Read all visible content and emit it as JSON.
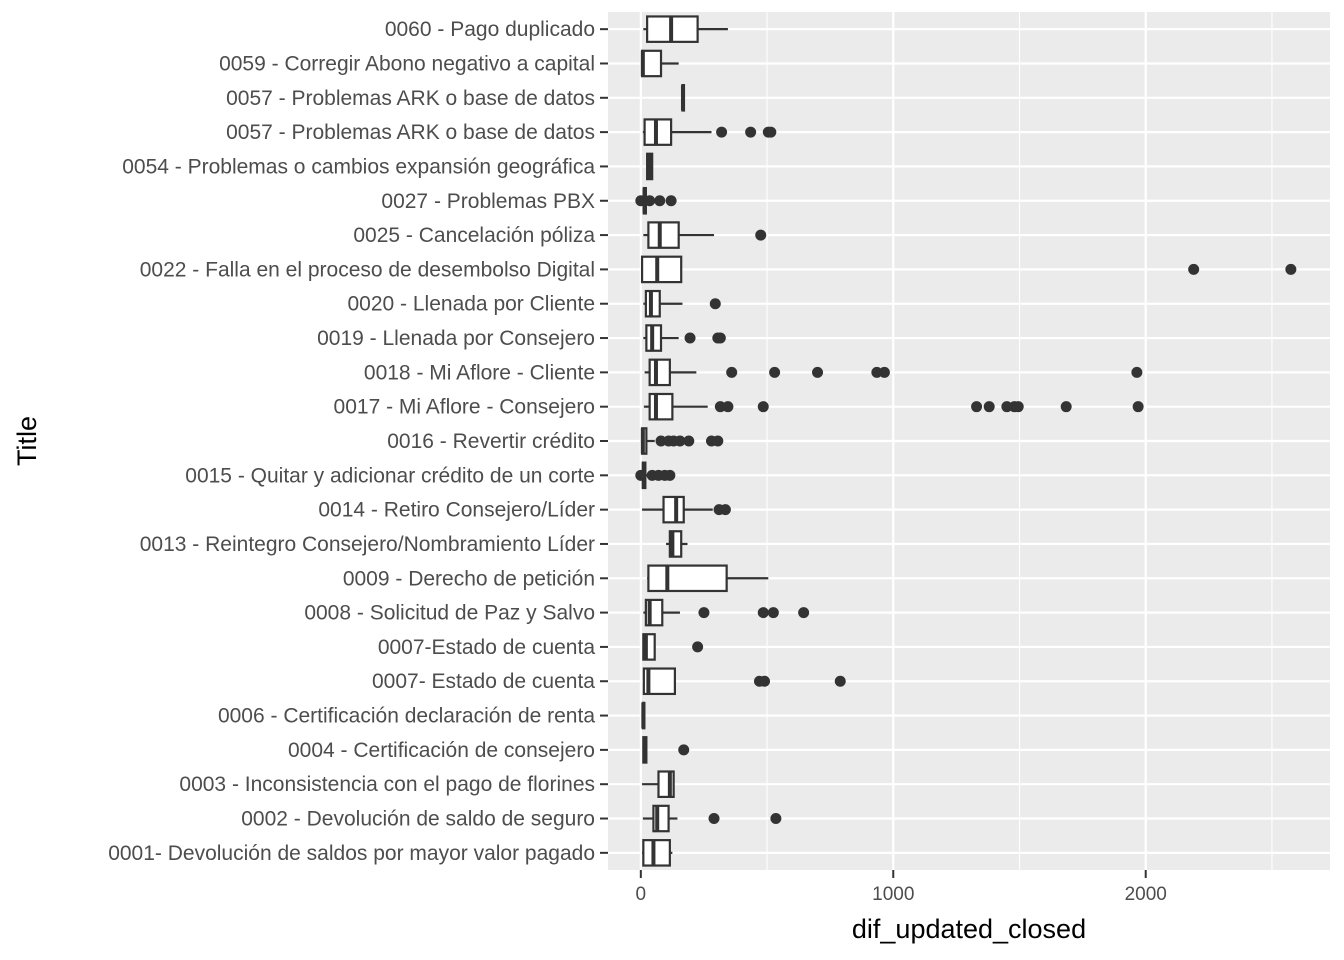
{
  "chart_data": {
    "type": "boxplot",
    "orientation": "horizontal",
    "xlabel": "dif_updated_closed",
    "ylabel": "Title",
    "xlim": [
      -130,
      2730
    ],
    "x_ticks": [
      0,
      1000,
      2000
    ],
    "x_tick_labels": [
      "0",
      "1000",
      "2000"
    ],
    "grid": true,
    "colors": {
      "panel": "#ebebeb",
      "grid": "#ffffff",
      "box_line": "#333333",
      "box_fill": "#ffffff"
    },
    "categories": [
      {
        "label": "0060 - Pago duplicado",
        "min": 10,
        "q1": 25,
        "median": 120,
        "q3": 225,
        "max": 345,
        "outliers": []
      },
      {
        "label": "0059 - Corregir Abono negativo a capital",
        "min": 5,
        "q1": 5,
        "median": 8,
        "q3": 80,
        "max": 150,
        "outliers": []
      },
      {
        "label": "0057 - Problemas ARK o base de datos",
        "min": 165,
        "q1": 165,
        "median": 167,
        "q3": 170,
        "max": 170,
        "outliers": []
      },
      {
        "label": "0057  - Problemas ARK o base de datos",
        "min": 8,
        "q1": 15,
        "median": 60,
        "q3": 120,
        "max": 280,
        "outliers": [
          320,
          435,
          505,
          515
        ]
      },
      {
        "label": "0054 - Problemas o cambios expansión geográfica",
        "min": 25,
        "q1": 25,
        "median": 35,
        "q3": 45,
        "max": 45,
        "outliers": []
      },
      {
        "label": "0027 - Problemas PBX",
        "min": 10,
        "q1": 12,
        "median": 15,
        "q3": 20,
        "max": 22,
        "outliers": [
          0,
          35,
          75,
          120
        ]
      },
      {
        "label": "0025 - Cancelación póliza",
        "min": 10,
        "q1": 30,
        "median": 75,
        "q3": 150,
        "max": 290,
        "outliers": [
          475
        ]
      },
      {
        "label": "0022 - Falla en el proceso de desembolso Digital",
        "min": 5,
        "q1": 5,
        "median": 65,
        "q3": 160,
        "max": 160,
        "outliers": [
          2190,
          2575
        ]
      },
      {
        "label": "0020 - Llenada por Cliente",
        "min": 10,
        "q1": 20,
        "median": 40,
        "q3": 75,
        "max": 165,
        "outliers": [
          295
        ]
      },
      {
        "label": "0019 - Llenada por Consejero",
        "min": 10,
        "q1": 22,
        "median": 45,
        "q3": 80,
        "max": 150,
        "outliers": [
          195,
          305,
          315
        ]
      },
      {
        "label": "0018 - Mi Aflore - Cliente",
        "min": 15,
        "q1": 35,
        "median": 60,
        "q3": 115,
        "max": 220,
        "outliers": [
          360,
          530,
          700,
          935,
          965,
          1965
        ]
      },
      {
        "label": "0017 - Mi Aflore - Consejero",
        "min": 12,
        "q1": 35,
        "median": 60,
        "q3": 125,
        "max": 265,
        "outliers": [
          315,
          345,
          485,
          1330,
          1380,
          1450,
          1480,
          1495,
          1685,
          1970
        ]
      },
      {
        "label": "0016 - Revertir crédito",
        "min": 2,
        "q1": 5,
        "median": 8,
        "q3": 22,
        "max": 55,
        "outliers": [
          80,
          110,
          130,
          155,
          190,
          280,
          305
        ]
      },
      {
        "label": "0015 - Quitar y adicionar crédito de un corte",
        "min": 5,
        "q1": 8,
        "median": 12,
        "q3": 18,
        "max": 30,
        "outliers": [
          0,
          45,
          70,
          95,
          115
        ]
      },
      {
        "label": "0014 - Retiro Consejero/Líder",
        "min": 5,
        "q1": 90,
        "median": 140,
        "q3": 170,
        "max": 285,
        "outliers": [
          310,
          335
        ]
      },
      {
        "label": "0013 - Reintegro Consejero/Nombramiento Líder",
        "min": 100,
        "q1": 115,
        "median": 125,
        "q3": 160,
        "max": 185,
        "outliers": []
      },
      {
        "label": "0009 - Derecho de petición",
        "min": 25,
        "q1": 30,
        "median": 105,
        "q3": 340,
        "max": 505,
        "outliers": []
      },
      {
        "label": "0008 - Solicitud de Paz y Salvo",
        "min": 10,
        "q1": 20,
        "median": 35,
        "q3": 85,
        "max": 155,
        "outliers": [
          250,
          485,
          525,
          645
        ]
      },
      {
        "label": "0007-Estado de cuenta",
        "min": 10,
        "q1": 10,
        "median": 20,
        "q3": 55,
        "max": 55,
        "outliers": [
          225
        ]
      },
      {
        "label": "0007- Estado de cuenta",
        "min": 10,
        "q1": 12,
        "median": 30,
        "q3": 135,
        "max": 135,
        "outliers": [
          470,
          490,
          790
        ]
      },
      {
        "label": "0006 - Certificación declaración de renta",
        "min": 8,
        "q1": 8,
        "median": 10,
        "q3": 12,
        "max": 12,
        "outliers": []
      },
      {
        "label": "0004 - Certificación de consejero",
        "min": 10,
        "q1": 10,
        "median": 15,
        "q3": 22,
        "max": 22,
        "outliers": [
          170
        ]
      },
      {
        "label": "0003 - Inconsistencia con el pago de florines",
        "min": 5,
        "q1": 70,
        "median": 115,
        "q3": 130,
        "max": 130,
        "outliers": []
      },
      {
        "label": "0002 - Devolución de saldo de seguro",
        "min": 8,
        "q1": 50,
        "median": 65,
        "q3": 110,
        "max": 145,
        "outliers": [
          290,
          535
        ]
      },
      {
        "label": "0001- Devolución de saldos por mayor valor pagado",
        "min": 5,
        "q1": 10,
        "median": 50,
        "q3": 115,
        "max": 125,
        "outliers": []
      }
    ]
  }
}
